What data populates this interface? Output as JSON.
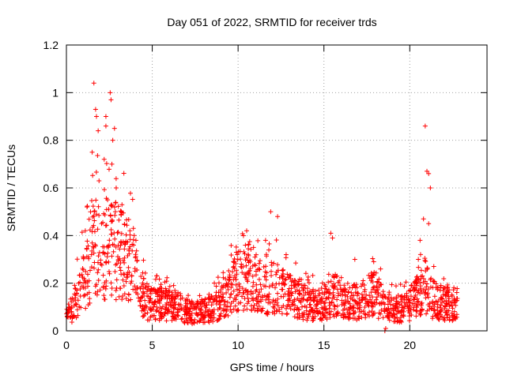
{
  "chart_data": {
    "type": "scatter",
    "title": "Day 051 of 2022, SRMTID for receiver trds",
    "xlabel": "GPS time / hours",
    "ylabel": "SRMTID / TECUs",
    "xlim": [
      0,
      24.5
    ],
    "ylim": [
      0,
      1.2
    ],
    "xticks": [
      0,
      5,
      10,
      15,
      20
    ],
    "xtick_labels": [
      "0",
      "5",
      "10",
      "15",
      "20"
    ],
    "yticks": [
      0,
      0.2,
      0.4,
      0.6,
      0.8,
      1,
      1.2
    ],
    "ytick_labels": [
      "0",
      "0.2",
      "0.4",
      "0.6",
      "0.8",
      "1",
      "1.2"
    ],
    "grid": true,
    "marker": "+",
    "series": [
      {
        "name": "SRMTID",
        "color": "#ff0000",
        "profile": [
          [
            0.0,
            0.06
          ],
          [
            0.5,
            0.12
          ],
          [
            0.8,
            0.2
          ],
          [
            1.2,
            0.28
          ],
          [
            1.5,
            0.36
          ],
          [
            1.8,
            0.4
          ],
          [
            2.2,
            0.34
          ],
          [
            2.6,
            0.38
          ],
          [
            3.0,
            0.36
          ],
          [
            3.5,
            0.33
          ],
          [
            4.0,
            0.27
          ],
          [
            4.3,
            0.18
          ],
          [
            4.8,
            0.12
          ],
          [
            5.5,
            0.12
          ],
          [
            6.0,
            0.12
          ],
          [
            6.5,
            0.11
          ],
          [
            7.0,
            0.09
          ],
          [
            7.5,
            0.08
          ],
          [
            8.0,
            0.09
          ],
          [
            8.5,
            0.1
          ],
          [
            9.0,
            0.12
          ],
          [
            9.5,
            0.18
          ],
          [
            10.0,
            0.22
          ],
          [
            10.5,
            0.26
          ],
          [
            11.0,
            0.22
          ],
          [
            11.5,
            0.18
          ],
          [
            12.0,
            0.2
          ],
          [
            12.5,
            0.18
          ],
          [
            13.0,
            0.16
          ],
          [
            13.5,
            0.14
          ],
          [
            14.0,
            0.12
          ],
          [
            15.0,
            0.12
          ],
          [
            15.5,
            0.16
          ],
          [
            16.0,
            0.15
          ],
          [
            16.5,
            0.13
          ],
          [
            17.0,
            0.13
          ],
          [
            17.5,
            0.16
          ],
          [
            18.0,
            0.17
          ],
          [
            18.5,
            0.11
          ],
          [
            19.0,
            0.1
          ],
          [
            19.5,
            0.1
          ],
          [
            20.0,
            0.12
          ],
          [
            20.5,
            0.16
          ],
          [
            20.9,
            0.2
          ],
          [
            21.3,
            0.15
          ],
          [
            22.0,
            0.12
          ],
          [
            22.7,
            0.12
          ]
        ],
        "spikes": [
          [
            1.6,
            1.04
          ],
          [
            1.7,
            0.93
          ],
          [
            1.75,
            0.9
          ],
          [
            2.3,
            0.9
          ],
          [
            2.3,
            0.86
          ],
          [
            2.55,
            1.0
          ],
          [
            2.6,
            0.97
          ],
          [
            2.8,
            0.85
          ],
          [
            2.7,
            0.8
          ],
          [
            1.85,
            0.84
          ],
          [
            1.5,
            0.75
          ],
          [
            2.65,
            0.7
          ],
          [
            1.9,
            0.63
          ],
          [
            2.2,
            0.72
          ],
          [
            2.9,
            0.6
          ],
          [
            2.4,
            0.55
          ],
          [
            1.2,
            0.52
          ],
          [
            3.2,
            0.5
          ],
          [
            2.05,
            0.45
          ],
          [
            1.1,
            0.42
          ],
          [
            3.7,
            0.42
          ],
          [
            4.05,
            0.38
          ],
          [
            3.9,
            0.43
          ],
          [
            10.5,
            0.42
          ],
          [
            11.9,
            0.5
          ],
          [
            12.3,
            0.48
          ],
          [
            11.6,
            0.38
          ],
          [
            10.9,
            0.35
          ],
          [
            9.9,
            0.33
          ],
          [
            12.8,
            0.32
          ],
          [
            15.4,
            0.41
          ],
          [
            15.5,
            0.39
          ],
          [
            17.9,
            0.29
          ],
          [
            18.3,
            0.26
          ],
          [
            16.8,
            0.3
          ],
          [
            20.9,
            0.86
          ],
          [
            21.0,
            0.67
          ],
          [
            21.1,
            0.66
          ],
          [
            21.2,
            0.6
          ],
          [
            20.8,
            0.47
          ],
          [
            21.1,
            0.45
          ],
          [
            20.6,
            0.38
          ],
          [
            20.5,
            0.3
          ],
          [
            18.55,
            0.0
          ],
          [
            18.6,
            0.01
          ],
          [
            21.4,
            0.27
          ]
        ],
        "end_hour": 22.8,
        "points_per_hour": 80,
        "scatter_min": 0.02
      }
    ]
  }
}
